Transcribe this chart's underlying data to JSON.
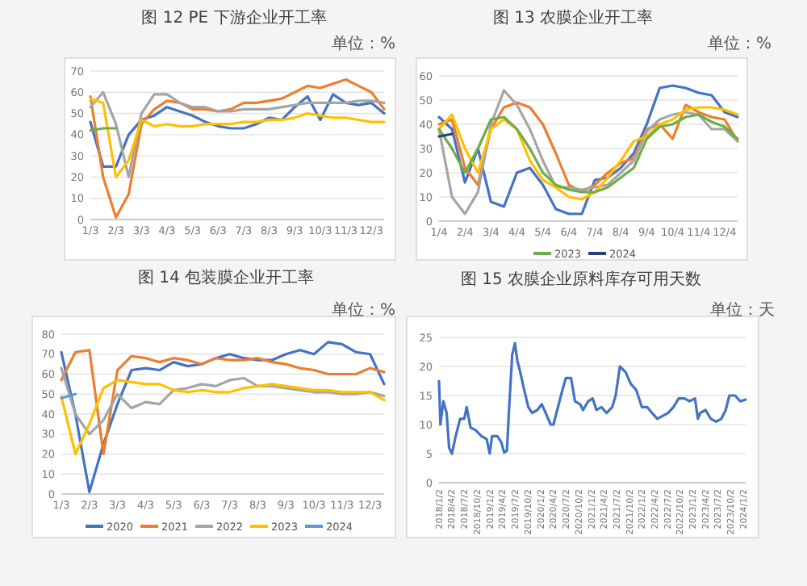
{
  "chart_data": [
    {
      "type": "line",
      "title": "图 12   PE 下游企业开工率",
      "annotations": [
        "单位：%"
      ],
      "grid": "y",
      "categories": [
        "1/3",
        null,
        "2/3",
        null,
        "3/3",
        null,
        "4/3",
        null,
        "5/3",
        null,
        "6/3",
        null,
        "7/3",
        null,
        "8/3",
        null,
        "9/3",
        null,
        "10/3",
        null,
        "11/3",
        null,
        "12/3",
        null
      ],
      "ylim": [
        0,
        70
      ],
      "yticks": [
        0,
        10,
        20,
        30,
        40,
        50,
        60,
        70
      ],
      "series": [
        {
          "color": "#4472c4",
          "values": [
            46,
            25,
            25,
            40,
            47,
            49,
            53,
            51,
            49,
            46,
            44,
            43,
            43,
            45,
            48,
            47,
            53,
            58,
            47,
            59,
            55,
            54,
            55,
            50
          ]
        },
        {
          "color": "#ed7d31",
          "values": [
            58,
            20,
            1,
            12,
            45,
            52,
            56,
            55,
            52,
            52,
            51,
            52,
            55,
            55,
            56,
            57,
            60,
            63,
            62,
            64,
            66,
            63,
            60,
            52
          ]
        },
        {
          "color": "#a5a5a5",
          "values": [
            53,
            60,
            45,
            20,
            50,
            59,
            59,
            55,
            53,
            53,
            51,
            51,
            52,
            52,
            52,
            53,
            54,
            55,
            55,
            55,
            55,
            56,
            56,
            55
          ]
        },
        {
          "color": "#ffc000",
          "values": [
            57,
            55,
            20,
            28,
            47,
            44,
            45,
            44,
            44,
            45,
            45,
            45,
            46,
            46,
            47,
            47,
            48,
            50,
            49,
            48,
            48,
            47,
            46,
            46
          ]
        },
        {
          "color": "#70ad47",
          "values": [
            42,
            43,
            43,
            null,
            null,
            null,
            null,
            null,
            null,
            null,
            null,
            null,
            null,
            null,
            null,
            null,
            null,
            null,
            null,
            null,
            null,
            null,
            null,
            null
          ]
        }
      ]
    },
    {
      "type": "line",
      "title": "图 13   农膜企业开工率",
      "annotations": [
        "单位：%"
      ],
      "grid": "y",
      "legend": "bottom",
      "categories": [
        "1/4",
        null,
        "2/4",
        null,
        "3/4",
        null,
        "4/4",
        null,
        "5/4",
        null,
        "6/4",
        null,
        "7/4",
        null,
        "8/4",
        null,
        "9/4",
        null,
        "10/4",
        null,
        "11/4",
        null,
        "12/4",
        null
      ],
      "ylim": [
        0,
        60
      ],
      "yticks": [
        0,
        10,
        20,
        30,
        40,
        50,
        60
      ],
      "series": [
        {
          "color": "#4472c4",
          "values": [
            43,
            38,
            16,
            30,
            8,
            6,
            20,
            22,
            15,
            5,
            3,
            3,
            17,
            18,
            22,
            28,
            40,
            55,
            56,
            55,
            53,
            52,
            45,
            43
          ]
        },
        {
          "color": "#ed7d31",
          "values": [
            40,
            42,
            22,
            15,
            38,
            47,
            49,
            47,
            40,
            28,
            15,
            12,
            15,
            20,
            24,
            26,
            38,
            40,
            34,
            48,
            45,
            43,
            42,
            33
          ]
        },
        {
          "color": "#a5a5a5",
          "values": [
            38,
            10,
            3,
            12,
            40,
            54,
            48,
            38,
            25,
            14,
            14,
            13,
            14,
            15,
            20,
            25,
            37,
            42,
            44,
            45,
            44,
            38,
            38,
            33
          ]
        },
        {
          "color": "#ffc000",
          "values": [
            38,
            44,
            30,
            20,
            38,
            42,
            38,
            25,
            17,
            14,
            10,
            9,
            12,
            18,
            25,
            33,
            35,
            40,
            42,
            46,
            47,
            47,
            46,
            44
          ]
        },
        {
          "name": "2023",
          "color": "#70ad47",
          "values": [
            38,
            30,
            20,
            30,
            42,
            43,
            38,
            30,
            20,
            15,
            13,
            12,
            12,
            14,
            18,
            22,
            34,
            39,
            40,
            43,
            44,
            41,
            39,
            34
          ]
        },
        {
          "name": "2024",
          "color": "#264478",
          "values": [
            35,
            36,
            null,
            null,
            null,
            null,
            null,
            null,
            null,
            null,
            null,
            null,
            null,
            null,
            null,
            null,
            null,
            null,
            null,
            null,
            null,
            null,
            null,
            null
          ]
        }
      ]
    },
    {
      "type": "line",
      "title": "图 14   包装膜企业开工率",
      "annotations": [
        "单位：%"
      ],
      "grid": "y",
      "legend": "bottom",
      "categories": [
        "1/3",
        null,
        "2/3",
        null,
        "3/3",
        null,
        "4/3",
        null,
        "5/3",
        null,
        "6/3",
        null,
        "7/3",
        null,
        "8/3",
        null,
        "9/3",
        null,
        "10/3",
        null,
        "11/3",
        null,
        "12/3",
        null
      ],
      "ylim": [
        0,
        80
      ],
      "yticks": [
        0,
        10,
        20,
        30,
        40,
        50,
        60,
        70,
        80
      ],
      "series": [
        {
          "name": "2020",
          "color": "#4472c4",
          "values": [
            71,
            40,
            1,
            25,
            45,
            62,
            63,
            62,
            66,
            64,
            65,
            68,
            70,
            68,
            67,
            67,
            70,
            72,
            70,
            76,
            75,
            71,
            70,
            55
          ]
        },
        {
          "name": "2021",
          "color": "#ed7d31",
          "values": [
            57,
            71,
            72,
            20,
            62,
            69,
            68,
            66,
            68,
            67,
            65,
            68,
            67,
            67,
            68,
            66,
            65,
            63,
            62,
            60,
            60,
            60,
            63,
            61
          ]
        },
        {
          "name": "2022",
          "color": "#a5a5a5",
          "values": [
            63,
            40,
            30,
            37,
            50,
            43,
            46,
            45,
            52,
            53,
            55,
            54,
            57,
            58,
            54,
            54,
            53,
            52,
            51,
            51,
            50,
            50,
            51,
            49
          ]
        },
        {
          "name": "2023",
          "color": "#ffc000",
          "values": [
            49,
            20,
            35,
            53,
            57,
            56,
            55,
            55,
            52,
            51,
            52,
            51,
            51,
            53,
            54,
            55,
            54,
            53,
            52,
            52,
            51,
            51,
            51,
            47
          ]
        },
        {
          "name": "2024",
          "color": "#5b9bd5",
          "values": [
            48,
            50,
            null,
            null,
            null,
            null,
            null,
            null,
            null,
            null,
            null,
            null,
            null,
            null,
            null,
            null,
            null,
            null,
            null,
            null,
            null,
            null,
            null,
            null
          ]
        }
      ]
    },
    {
      "type": "line",
      "title": "图 15   农膜企业原料库存可用天数",
      "annotations": [
        "单位：天"
      ],
      "grid": "y",
      "xlim": [
        "2018-01-02",
        "2024-01-19"
      ],
      "ylim": [
        0,
        25
      ],
      "yticks": [
        0,
        5,
        10,
        15,
        20,
        25
      ],
      "xticks": [
        {
          "value": "2018-01-02",
          "label": "2018/1/2"
        },
        {
          "value": "2018-04-02",
          "label": "2018/4/2"
        },
        {
          "value": "2018-07-02",
          "label": "2018/7/2"
        },
        {
          "value": "2018-10-02",
          "label": "2018/10/2"
        },
        {
          "value": "2019-01-02",
          "label": "2019/1/2"
        },
        {
          "value": "2019-04-02",
          "label": "2019/4/2"
        },
        {
          "value": "2019-07-02",
          "label": "2019/7/2"
        },
        {
          "value": "2019-10-02",
          "label": "2019/10/2"
        },
        {
          "value": "2020-01-02",
          "label": "2020/1/2"
        },
        {
          "value": "2020-04-02",
          "label": "2020/4/2"
        },
        {
          "value": "2020-07-02",
          "label": "2020/7/2"
        },
        {
          "value": "2020-10-02",
          "label": "2020/10/2"
        },
        {
          "value": "2021-01-02",
          "label": "2021/1/2"
        },
        {
          "value": "2021-04-02",
          "label": "2021/4/2"
        },
        {
          "value": "2021-07-02",
          "label": "2021/7/2"
        },
        {
          "value": "2021-10-02",
          "label": "2021/10/2"
        },
        {
          "value": "2022-01-02",
          "label": "2022/1/2"
        },
        {
          "value": "2022-04-02",
          "label": "2022/4/2"
        },
        {
          "value": "2022-07-02",
          "label": "2022/7/2"
        },
        {
          "value": "2022-10-02",
          "label": "2022/10/2"
        },
        {
          "value": "2023-01-02",
          "label": "2023/1/2"
        },
        {
          "value": "2023-04-02",
          "label": "2023/4/2"
        },
        {
          "value": "2023-07-02",
          "label": "2023/7/2"
        },
        {
          "value": "2023-10-02",
          "label": "2023/10/2"
        },
        {
          "value": "2024-01-02",
          "label": "2024/1/2"
        }
      ],
      "series": [
        {
          "color": "#4472c4",
          "x": [
            "2018-01-02",
            "2018-01-12",
            "2018-02-02",
            "2018-02-26",
            "2018-03-16",
            "2018-04-05",
            "2018-05-02",
            "2018-06-03",
            "2018-07-03",
            "2018-07-20",
            "2018-08-17",
            "2018-09-24",
            "2018-11-04",
            "2018-12-11",
            "2019-01-02",
            "2019-01-19",
            "2019-02-26",
            "2019-03-26",
            "2019-04-16",
            "2019-05-06",
            "2019-05-20",
            "2019-06-13",
            "2019-07-03",
            "2019-07-20",
            "2019-08-10",
            "2019-09-07",
            "2019-10-07",
            "2019-11-04",
            "2019-12-11",
            "2020-01-12",
            "2020-02-09",
            "2020-03-16",
            "2020-04-05",
            "2020-05-02",
            "2020-06-09",
            "2020-07-03",
            "2020-08-10",
            "2020-09-07",
            "2020-10-14",
            "2020-11-04",
            "2020-12-11",
            "2021-01-12",
            "2021-02-09",
            "2021-03-16",
            "2021-04-23",
            "2021-06-02",
            "2021-06-27",
            "2021-07-27",
            "2021-09-07",
            "2021-10-14",
            "2021-11-21",
            "2022-01-02",
            "2022-02-09",
            "2022-03-16",
            "2022-04-23",
            "2022-06-02",
            "2022-07-09",
            "2022-08-17",
            "2022-09-24",
            "2022-11-04",
            "2022-12-11",
            "2023-01-19",
            "2023-02-09",
            "2023-02-26",
            "2023-04-05",
            "2023-05-13",
            "2023-06-20",
            "2023-07-28",
            "2023-08-28",
            "2023-09-24",
            "2023-11-04",
            "2023-12-11",
            "2024-01-19"
          ],
          "values": [
            17.5,
            10,
            14,
            12,
            6,
            5,
            8,
            11,
            11,
            13,
            9.5,
            9,
            8,
            7.5,
            5,
            8,
            8,
            7,
            5.2,
            5.5,
            12,
            22,
            24,
            21,
            19,
            16,
            13,
            12,
            12.5,
            13.5,
            12,
            10,
            10,
            12.5,
            16,
            18,
            18,
            14,
            13.5,
            12.5,
            14,
            14.5,
            12.5,
            13,
            12,
            13,
            15,
            20,
            19,
            17,
            16,
            13,
            13,
            12,
            11,
            11.5,
            12,
            13,
            14.5,
            14.5,
            14,
            14.5,
            11,
            12,
            12.5,
            11,
            10.5,
            11,
            12.5,
            15,
            15,
            14,
            14.3
          ]
        }
      ]
    }
  ]
}
